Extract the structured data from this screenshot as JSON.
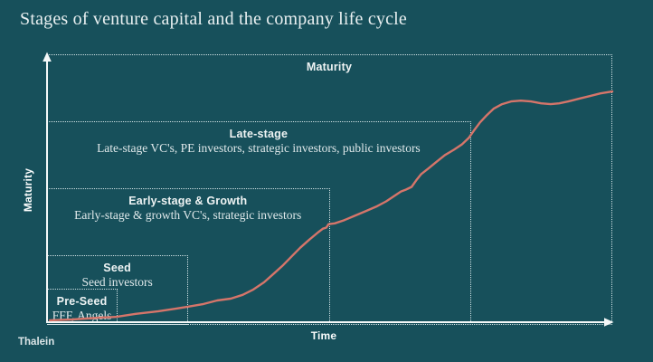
{
  "title": "Stages of venture capital and the company life cycle",
  "branding": "Thalein",
  "colors": {
    "background": "#17505B",
    "curve": "#D5756A",
    "axis": "#F4F8F8",
    "dotted": "#D9E8EB",
    "title_text": "#E9F0F1"
  },
  "chart_data": {
    "type": "line",
    "title": "Stages of venture capital and the company life cycle",
    "xlabel": "Time",
    "ylabel": "Maturity",
    "grid": false,
    "legend": false,
    "axes": {
      "x": {
        "label": "Time",
        "ticks": "none",
        "arrow": true
      },
      "y": {
        "label": "Maturity",
        "ticks": "none",
        "arrow": true
      }
    },
    "stages": [
      {
        "label": "Pre-Seed",
        "investors": "FFF, Angels",
        "x_end": 0.125,
        "y_top": 0.125
      },
      {
        "label": "Seed",
        "investors": "Seed investors",
        "x_end": 0.25,
        "y_top": 0.25
      },
      {
        "label": "Early-stage & Growth",
        "investors": "Early-stage & growth VC's, strategic investors",
        "x_end": 0.5,
        "y_top": 0.5
      },
      {
        "label": "Late-stage",
        "investors": "Late-stage VC's, PE investors, strategic investors, public investors",
        "x_end": 0.75,
        "y_top": 0.75
      },
      {
        "label": "Maturity",
        "investors": "",
        "x_end": 1.0,
        "y_top": 1.0
      }
    ],
    "series": [
      {
        "name": "company-maturity-curve",
        "color": "#D5756A",
        "points_frac": [
          [
            0.005,
            0.007
          ],
          [
            0.045,
            0.01
          ],
          [
            0.093,
            0.017
          ],
          [
            0.123,
            0.02
          ],
          [
            0.157,
            0.031
          ],
          [
            0.197,
            0.041
          ],
          [
            0.229,
            0.051
          ],
          [
            0.25,
            0.058
          ],
          [
            0.277,
            0.068
          ],
          [
            0.301,
            0.081
          ],
          [
            0.325,
            0.088
          ],
          [
            0.346,
            0.102
          ],
          [
            0.365,
            0.122
          ],
          [
            0.384,
            0.149
          ],
          [
            0.402,
            0.183
          ],
          [
            0.418,
            0.214
          ],
          [
            0.432,
            0.244
          ],
          [
            0.448,
            0.278
          ],
          [
            0.464,
            0.308
          ],
          [
            0.48,
            0.336
          ],
          [
            0.488,
            0.349
          ],
          [
            0.494,
            0.353
          ],
          [
            0.498,
            0.366
          ],
          [
            0.509,
            0.369
          ],
          [
            0.525,
            0.38
          ],
          [
            0.544,
            0.397
          ],
          [
            0.563,
            0.414
          ],
          [
            0.582,
            0.431
          ],
          [
            0.6,
            0.451
          ],
          [
            0.614,
            0.471
          ],
          [
            0.626,
            0.488
          ],
          [
            0.635,
            0.495
          ],
          [
            0.645,
            0.505
          ],
          [
            0.653,
            0.529
          ],
          [
            0.662,
            0.553
          ],
          [
            0.674,
            0.573
          ],
          [
            0.688,
            0.597
          ],
          [
            0.704,
            0.624
          ],
          [
            0.72,
            0.644
          ],
          [
            0.734,
            0.664
          ],
          [
            0.746,
            0.688
          ],
          [
            0.755,
            0.715
          ],
          [
            0.766,
            0.746
          ],
          [
            0.778,
            0.773
          ],
          [
            0.79,
            0.797
          ],
          [
            0.805,
            0.814
          ],
          [
            0.821,
            0.824
          ],
          [
            0.838,
            0.827
          ],
          [
            0.856,
            0.824
          ],
          [
            0.874,
            0.817
          ],
          [
            0.891,
            0.814
          ],
          [
            0.906,
            0.817
          ],
          [
            0.922,
            0.824
          ],
          [
            0.941,
            0.834
          ],
          [
            0.96,
            0.844
          ],
          [
            0.979,
            0.854
          ],
          [
            1.0,
            0.861
          ]
        ]
      }
    ]
  }
}
